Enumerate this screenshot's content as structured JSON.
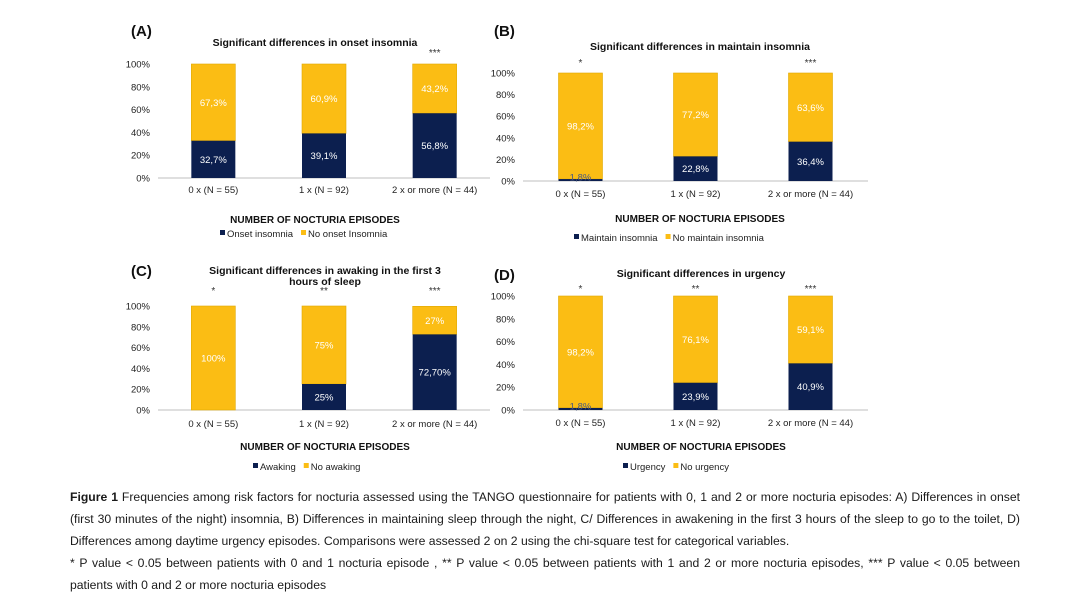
{
  "colors": {
    "dark": "#0c1f4f",
    "yellow": "#fbbd14",
    "bar_outline": "#e0a800"
  },
  "chart_data": [
    {
      "type": "bar",
      "letter": "(A)",
      "title": "Significant differences in onset insomnia",
      "xlabel": "NUMBER OF NOCTURIA EPISODES",
      "ylim": [
        0,
        100
      ],
      "y_ticks": [
        "0%",
        "20%",
        "40%",
        "60%",
        "80%",
        "100%"
      ],
      "categories": [
        "0 x (N = 55)",
        "1 x (N = 92)",
        "2 x or more (N = 44)"
      ],
      "stars": [
        "",
        "",
        "***"
      ],
      "series": [
        {
          "name": "Onset insomnia",
          "values": [
            32.7,
            39.1,
            56.8
          ],
          "labels": [
            "32,7%",
            "39,1%",
            "56,8%"
          ]
        },
        {
          "name": "No onset Insomnia",
          "values": [
            67.3,
            60.9,
            43.2
          ],
          "labels": [
            "67,3%",
            "60,9%",
            "43,2%"
          ]
        }
      ]
    },
    {
      "type": "bar",
      "letter": "(B)",
      "title": "Significant differences in maintain insomnia",
      "xlabel": "NUMBER OF NOCTURIA EPISODES",
      "ylim": [
        0,
        100
      ],
      "y_ticks": [
        "0%",
        "20%",
        "40%",
        "60%",
        "80%",
        "100%"
      ],
      "categories": [
        "0 x (N = 55)",
        "1 x (N = 92)",
        "2 x or more (N = 44)"
      ],
      "stars": [
        "*",
        "",
        "***"
      ],
      "series": [
        {
          "name": "Maintain insomnia",
          "values": [
            1.8,
            22.8,
            36.4
          ],
          "labels": [
            "1,8%",
            "22,8%",
            "36,4%"
          ]
        },
        {
          "name": "No maintain insomnia",
          "values": [
            98.2,
            77.2,
            63.6
          ],
          "labels": [
            "98,2%",
            "77,2%",
            "63,6%"
          ]
        }
      ]
    },
    {
      "type": "bar",
      "letter": "(C)",
      "title": "Significant differences in awaking in the first 3 hours of sleep",
      "xlabel": "NUMBER OF NOCTURIA EPISODES",
      "ylim": [
        0,
        100
      ],
      "y_ticks": [
        "0%",
        "20%",
        "40%",
        "60%",
        "80%",
        "100%"
      ],
      "categories": [
        "0 x (N = 55)",
        "1 x (N = 92)",
        "2 x or more (N = 44)"
      ],
      "stars": [
        "*",
        "**",
        "***"
      ],
      "series": [
        {
          "name": "Awaking",
          "values": [
            0,
            25,
            72.7
          ],
          "labels": [
            "",
            "25%",
            "72,70%"
          ]
        },
        {
          "name": "No awaking",
          "values": [
            100,
            75,
            27
          ],
          "labels": [
            "100%",
            "75%",
            "27%"
          ]
        }
      ]
    },
    {
      "type": "bar",
      "letter": "(D)",
      "title": "Significant differences in urgency",
      "xlabel": "NUMBER OF NOCTURIA EPISODES",
      "ylim": [
        0,
        100
      ],
      "y_ticks": [
        "0%",
        "20%",
        "40%",
        "60%",
        "80%",
        "100%"
      ],
      "categories": [
        "0 x (N = 55)",
        "1 x (N = 92)",
        "2 x or more (N = 44)"
      ],
      "stars": [
        "*",
        "**",
        "***"
      ],
      "series": [
        {
          "name": "Urgency",
          "values": [
            1.8,
            23.9,
            40.9
          ],
          "labels": [
            "1,8%",
            "23,9%",
            "40,9%"
          ]
        },
        {
          "name": "No urgency",
          "values": [
            98.2,
            76.1,
            59.1
          ],
          "labels": [
            "98,2%",
            "76,1%",
            "59,1%"
          ]
        }
      ]
    }
  ],
  "caption": {
    "figure_label": "Figure 1",
    "figure_text": "Frequencies among risk factors for nocturia assessed using the TANGO questionnaire for patients with 0, 1 and 2 or more nocturia episodes: A) Differences in onset (first 30 minutes of the night) insomnia,  B) Differences in maintaining sleep through the night, C/ Differences in awakening in the first 3 hours of the sleep to go to the toilet, D) Differences among daytime urgency episodes. Comparisons were assessed 2 on 2 using the chi-square test for categorical variables.",
    "pvalue_note": "* P value < 0.05 between patients with 0 and 1 nocturia episode , ** P value < 0.05 between patients with 1 and 2 or more nocturia episodes, *** P value < 0.05 between patients with 0 and 2 or more nocturia episodes"
  }
}
